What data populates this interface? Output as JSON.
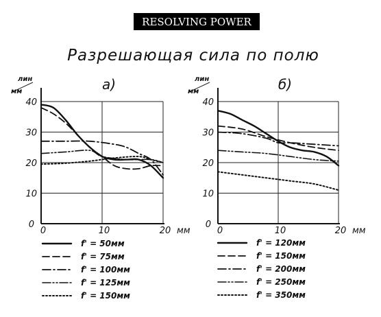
{
  "banner": "RESOLVING POWER",
  "title": "Разрешающая сила по полю",
  "chart_data": [
    {
      "type": "line",
      "panel_label": "а)",
      "ylabel_top": "лин",
      "ylabel_bottom": "мм",
      "xlabel": "мм",
      "xlim": [
        0,
        20
      ],
      "ylim": [
        0,
        40
      ],
      "x_ticks": [
        "0",
        "10",
        "20"
      ],
      "y_ticks": [
        "10",
        "20",
        "30",
        "40"
      ],
      "y_zero_label": "0",
      "grid": true,
      "series": [
        {
          "name": "f' = 50мм",
          "style": "solid",
          "x": [
            0,
            2,
            4,
            6,
            8,
            10,
            12,
            14,
            16,
            18,
            20
          ],
          "y": [
            39,
            38,
            34,
            29,
            25,
            22,
            21,
            21,
            21,
            19,
            15
          ]
        },
        {
          "name": "f' = 75мм",
          "style": "dashed",
          "x": [
            0,
            2,
            4,
            6,
            8,
            10,
            12,
            14,
            16,
            18,
            20
          ],
          "y": [
            38,
            36,
            33,
            29,
            25,
            22,
            19,
            18,
            18,
            19,
            19
          ]
        },
        {
          "name": "f' = 100мм",
          "style": "dashdot",
          "x": [
            0,
            4,
            8,
            12,
            14,
            16,
            18,
            20
          ],
          "y": [
            27,
            27,
            27,
            26,
            25,
            23,
            21,
            16
          ]
        },
        {
          "name": "f' = 125мм",
          "style": "dashdotdot",
          "x": [
            0,
            4,
            8,
            10,
            14,
            18,
            20
          ],
          "y": [
            23,
            23.5,
            24,
            22,
            21,
            21,
            20
          ]
        },
        {
          "name": "f' = 150мм",
          "style": "dotted",
          "x": [
            0,
            4,
            8,
            12,
            16,
            18,
            20
          ],
          "y": [
            19.5,
            19.8,
            20.5,
            21.5,
            22,
            21,
            20
          ]
        }
      ]
    },
    {
      "type": "line",
      "panel_label": "б)",
      "ylabel_top": "лин",
      "ylabel_bottom": "мм",
      "xlabel": "мм",
      "xlim": [
        0,
        20
      ],
      "ylim": [
        0,
        40
      ],
      "x_ticks": [
        "0",
        "10",
        "20"
      ],
      "y_ticks": [
        "10",
        "20",
        "30",
        "40"
      ],
      "y_zero_label": "0",
      "grid": true,
      "series": [
        {
          "name": "f' = 120мм",
          "style": "solid",
          "x": [
            0,
            2,
            4,
            6,
            8,
            10,
            12,
            14,
            16,
            18,
            20
          ],
          "y": [
            37,
            36,
            34,
            32,
            29.5,
            27,
            25,
            24,
            23.5,
            22,
            19
          ]
        },
        {
          "name": "f' = 150мм",
          "style": "dashed",
          "x": [
            0,
            4,
            8,
            12,
            16,
            20
          ],
          "y": [
            32,
            31,
            28.5,
            26.5,
            25,
            24
          ]
        },
        {
          "name": "f' = 200мм",
          "style": "dashdot",
          "x": [
            0,
            4,
            8,
            10,
            12,
            16,
            20
          ],
          "y": [
            30,
            29.5,
            28,
            26.5,
            26.5,
            26,
            25.5
          ]
        },
        {
          "name": "f' = 250мм",
          "style": "dashdotdot",
          "x": [
            0,
            4,
            8,
            12,
            16,
            20
          ],
          "y": [
            24,
            23.5,
            23,
            22,
            21,
            20.5
          ]
        },
        {
          "name": "f' = 350мм",
          "style": "dotted",
          "x": [
            0,
            4,
            8,
            12,
            16,
            20
          ],
          "y": [
            17,
            16,
            15,
            14,
            13,
            11
          ]
        }
      ]
    }
  ]
}
